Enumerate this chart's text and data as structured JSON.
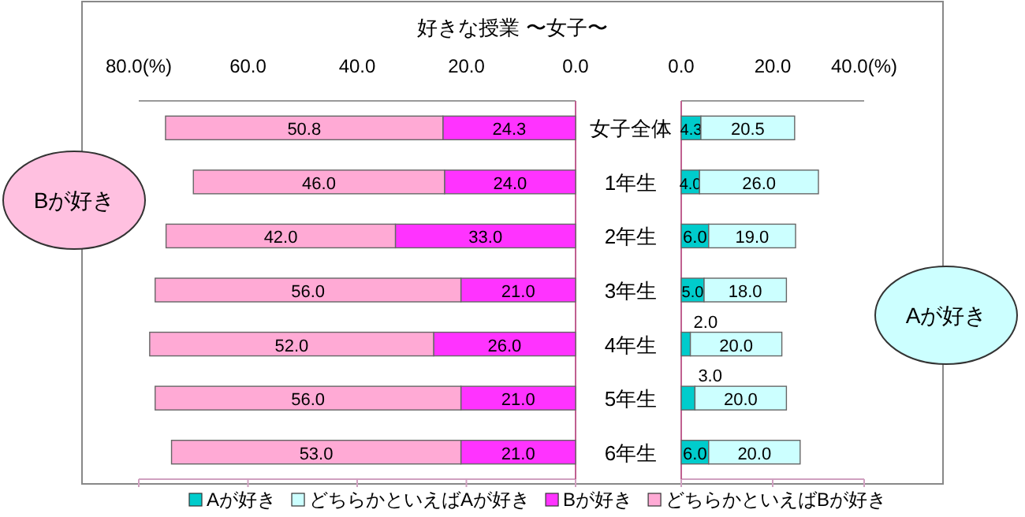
{
  "chart_data": [
    {
      "type": "bar",
      "orientation": "horizontal",
      "stacked": true,
      "title": "好きな授業 〜女子〜",
      "categories": [
        "女子全体",
        "1年生",
        "2年生",
        "3年生",
        "4年生",
        "5年生",
        "6年生"
      ],
      "series": [
        {
          "name": "Bが好き",
          "color": "#ff33ff",
          "values": [
            24.3,
            24.0,
            33.0,
            21.0,
            26.0,
            21.0,
            21.0
          ],
          "value_labels": [
            "24.3",
            "24.0",
            "33.0",
            "21.0",
            "26.0",
            "21.0",
            "21.0"
          ]
        },
        {
          "name": "どちらかといえばBが好き",
          "color": "#ffaad5",
          "values": [
            50.8,
            46.0,
            42.0,
            56.0,
            52.0,
            56.0,
            53.0
          ],
          "value_labels": [
            "50.8",
            "46.0",
            "42.0",
            "56.0",
            "52.0",
            "56.0",
            "53.0"
          ]
        }
      ],
      "xlim": [
        80,
        0
      ],
      "xticks": [
        {
          "value": 80,
          "label": "80.0(%)"
        },
        {
          "value": 60,
          "label": "60.0"
        },
        {
          "value": 40,
          "label": "40.0"
        },
        {
          "value": 20,
          "label": "20.0"
        },
        {
          "value": 0,
          "label": "0.0"
        }
      ],
      "legend": "bottom",
      "annotations": [
        "Bが好き"
      ]
    },
    {
      "type": "bar",
      "orientation": "horizontal",
      "stacked": true,
      "categories": [
        null,
        null,
        null,
        null,
        null,
        null,
        null
      ],
      "series": [
        {
          "name": "Aが好き",
          "color": "#00cccc",
          "values": [
            4.3,
            4.0,
            6.0,
            5.0,
            2.0,
            3.0,
            6.0
          ],
          "value_labels": [
            "4.3",
            "4.0",
            "6.0",
            "5.0",
            "2.0",
            "3.0",
            "6.0"
          ]
        },
        {
          "name": "どちらかといえばAが好き",
          "color": "#ccffff",
          "values": [
            20.5,
            26.0,
            19.0,
            18.0,
            20.0,
            20.0,
            20.0
          ],
          "value_labels": [
            "20.5",
            "26.0",
            "19.0",
            "18.0",
            "20.0",
            "20.0",
            "20.0"
          ]
        }
      ],
      "xlim": [
        0,
        40
      ],
      "xticks": [
        {
          "value": 0,
          "label": "0.0"
        },
        {
          "value": 20,
          "label": "20.0"
        },
        {
          "value": 40,
          "label": "40.0(%)"
        }
      ],
      "legend": "bottom",
      "annotations": [
        "Aが好き"
      ]
    }
  ]
}
